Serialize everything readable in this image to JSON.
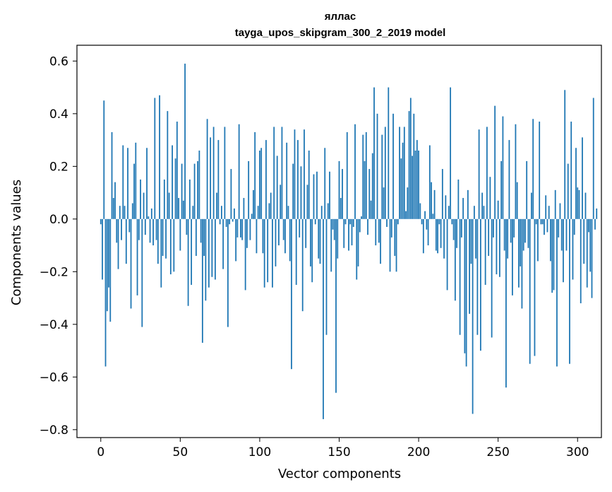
{
  "chart_data": {
    "type": "bar",
    "title": "яллас",
    "subtitle": "tayga_upos_skipgram_300_2_2019 model",
    "xlabel": "Vector components",
    "ylabel": "Components values",
    "xlim": [
      -15,
      315
    ],
    "ylim": [
      -0.83,
      0.66
    ],
    "xticks": [
      0,
      50,
      100,
      150,
      200,
      250,
      300
    ],
    "xtick_labels": [
      "0",
      "50",
      "100",
      "150",
      "200",
      "250",
      "300"
    ],
    "yticks": [
      0.6,
      0.4,
      0.2,
      0.0,
      -0.2,
      -0.4,
      -0.6,
      -0.8
    ],
    "ytick_labels": [
      "0.6",
      "0.4",
      "0.2",
      "0.0",
      "−0.2",
      "−0.4",
      "−0.6",
      "−0.8"
    ],
    "series": [
      {
        "name": "яллас",
        "color": "#1f77b4",
        "values": [
          -0.02,
          -0.23,
          0.45,
          -0.56,
          -0.35,
          -0.26,
          -0.39,
          0.33,
          0.08,
          0.14,
          -0.09,
          -0.19,
          0.05,
          -0.08,
          0.28,
          0.05,
          -0.17,
          0.27,
          -0.05,
          -0.34,
          0.06,
          0.21,
          0.29,
          -0.29,
          -0.08,
          0.15,
          -0.41,
          0.1,
          -0.06,
          0.27,
          0.01,
          -0.09,
          0.04,
          -0.1,
          0.46,
          -0.08,
          -0.17,
          0.47,
          -0.26,
          -0.14,
          0.15,
          -0.15,
          0.41,
          0.1,
          -0.21,
          0.28,
          -0.2,
          0.23,
          0.37,
          0.08,
          -0.12,
          0.21,
          0.07,
          0.59,
          -0.06,
          -0.33,
          0.15,
          -0.25,
          0.05,
          0.21,
          -0.14,
          0.22,
          0.26,
          -0.09,
          -0.47,
          -0.14,
          -0.31,
          0.38,
          -0.26,
          0.31,
          -0.22,
          0.35,
          -0.23,
          0.1,
          0.3,
          -0.02,
          0.05,
          -0.19,
          0.35,
          -0.03,
          -0.41,
          -0.02,
          0.19,
          -0.01,
          0.04,
          -0.16,
          -0.07,
          0.36,
          -0.07,
          -0.08,
          0.08,
          -0.27,
          -0.11,
          0.22,
          -0.08,
          0.02,
          0.11,
          0.33,
          -0.13,
          0.05,
          0.26,
          0.27,
          -0.13,
          -0.26,
          0.3,
          -0.24,
          0.06,
          0.1,
          -0.26,
          0.35,
          -0.18,
          0.24,
          -0.1,
          0.13,
          0.35,
          -0.08,
          -0.13,
          0.29,
          0.05,
          -0.16,
          -0.57,
          0.21,
          0.34,
          -0.25,
          0.3,
          -0.07,
          0.2,
          -0.35,
          0.34,
          -0.11,
          0.13,
          0.26,
          -0.18,
          -0.24,
          0.17,
          -0.02,
          0.18,
          -0.15,
          -0.17,
          0.05,
          -0.76,
          0.27,
          -0.44,
          0.06,
          0.18,
          -0.2,
          -0.04,
          -0.08,
          -0.66,
          -0.15,
          0.22,
          0.08,
          0.19,
          -0.11,
          -0.02,
          0.33,
          -0.12,
          -0.02,
          -0.1,
          -0.03,
          0.36,
          -0.23,
          -0.18,
          -0.05,
          0.01,
          0.32,
          0.22,
          0.33,
          -0.06,
          0.19,
          0.07,
          0.25,
          0.5,
          -0.1,
          0.4,
          -0.09,
          -0.17,
          0.32,
          0.12,
          0.35,
          -0.03,
          0.5,
          -0.2,
          -0.07,
          0.4,
          -0.14,
          -0.2,
          -0.02,
          0.35,
          0.23,
          0.29,
          0.35,
          0.03,
          0.12,
          0.41,
          0.46,
          0.24,
          0.4,
          0.26,
          0.3,
          0.26,
          0.06,
          -0.02,
          -0.13,
          0.03,
          -0.04,
          -0.1,
          0.28,
          0.14,
          0.02,
          0.11,
          -0.12,
          -0.13,
          -0.02,
          -0.11,
          0.19,
          -0.15,
          0.09,
          -0.27,
          0.05,
          0.5,
          -0.02,
          -0.08,
          -0.31,
          -0.11,
          0.15,
          -0.44,
          -0.07,
          0.08,
          -0.51,
          -0.56,
          0.11,
          -0.36,
          -0.17,
          -0.74,
          0.05,
          -0.15,
          -0.44,
          0.34,
          -0.5,
          0.1,
          0.05,
          -0.25,
          0.35,
          -0.14,
          0.16,
          -0.45,
          -0.07,
          0.43,
          -0.21,
          0.07,
          -0.22,
          0.22,
          0.39,
          -0.12,
          -0.64,
          -0.15,
          0.3,
          -0.09,
          -0.29,
          -0.07,
          0.36,
          0.14,
          -0.26,
          -0.18,
          -0.34,
          -0.12,
          -0.09,
          0.22,
          -0.11,
          -0.55,
          0.1,
          0.38,
          -0.52,
          -0.02,
          -0.16,
          0.37,
          -0.02,
          -0.02,
          -0.06,
          0.09,
          -0.05,
          0.05,
          -0.16,
          -0.28,
          -0.27,
          0.11,
          -0.56,
          -0.07,
          0.06,
          -0.12,
          -0.24,
          0.49,
          -0.12,
          0.21,
          -0.55,
          0.37,
          -0.23,
          -0.06,
          0.27,
          0.12,
          0.11,
          -0.32,
          0.31,
          -0.17,
          0.1,
          -0.26,
          -0.05,
          -0.2,
          -0.3,
          0.46,
          -0.04,
          0.04
        ]
      }
    ]
  }
}
